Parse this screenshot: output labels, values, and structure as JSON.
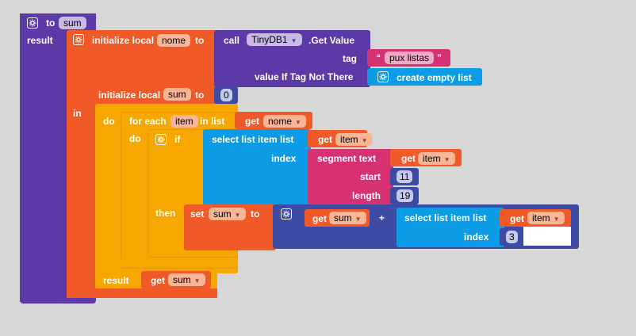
{
  "colors": {
    "procedure": "#5b3aa8",
    "local": "#f05a28",
    "control": "#f7a800",
    "list": "#0b9ce5",
    "text": "#d63172",
    "math": "#3e4ba5",
    "tinydb": "#5b3aa8"
  },
  "procedure": {
    "to": "to",
    "name": "sum",
    "result": "result"
  },
  "init_nome": {
    "label": "initialize local",
    "var": "nome",
    "to": "to"
  },
  "tinydb_call": {
    "call": "call",
    "component": "TinyDB1",
    "method": ".Get Value",
    "tag_label": "tag",
    "tag_open_quote": "“",
    "tag_value": "pux listas",
    "tag_close_quote": "”",
    "default_label": "value If Tag Not There",
    "default_value": "create empty list"
  },
  "init_sum": {
    "label": "initialize local",
    "var": "sum",
    "to": "to",
    "value": "0"
  },
  "in_label": "in",
  "do_label": "do",
  "foreach": {
    "label": "for each",
    "var": "item",
    "in_list": "in list",
    "get": "get",
    "list_var": "nome"
  },
  "if_block": {
    "do": "do",
    "if": "if",
    "select": "select list item  list",
    "get": "get",
    "list_var": "item",
    "index_label": "index",
    "segment": "segment  text",
    "seg_get": "get",
    "seg_var": "item",
    "start_label": "start",
    "start_val": "11",
    "length_label": "length",
    "length_val": "19",
    "then": "then"
  },
  "set_block": {
    "set": "set",
    "var": "sum",
    "to": "to",
    "get1": "get",
    "var1": "sum",
    "plus": "+",
    "select": "select list item  list",
    "get2": "get",
    "var2": "item",
    "index_label": "index",
    "index_val": "3"
  },
  "result_row": {
    "label": "result",
    "get": "get",
    "var": "sum"
  }
}
